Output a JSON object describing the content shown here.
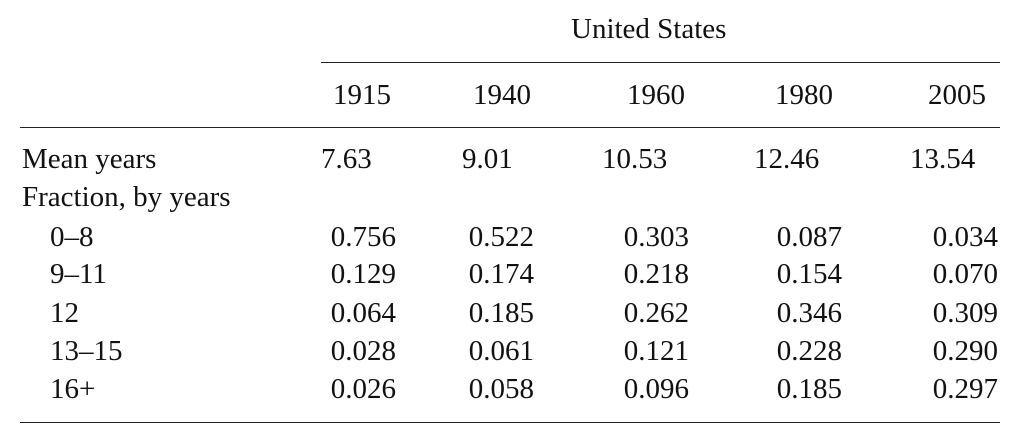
{
  "table": {
    "group_header": "United States",
    "years": [
      "1915",
      "1940",
      "1960",
      "1980",
      "2005"
    ],
    "mean_years": {
      "label": "Mean years",
      "values": [
        "7.63",
        "9.01",
        "10.53",
        "12.46",
        "13.54"
      ]
    },
    "fraction_heading": "Fraction, by years",
    "fraction_rows": [
      {
        "label": "0–8",
        "values": [
          "0.756",
          "0.522",
          "0.303",
          "0.087",
          "0.034"
        ]
      },
      {
        "label": "9–11",
        "values": [
          "0.129",
          "0.174",
          "0.218",
          "0.154",
          "0.070"
        ]
      },
      {
        "label": "12",
        "values": [
          "0.064",
          "0.185",
          "0.262",
          "0.346",
          "0.309"
        ]
      },
      {
        "label": "13–15",
        "values": [
          "0.028",
          "0.061",
          "0.121",
          "0.228",
          "0.290"
        ]
      },
      {
        "label": "16+",
        "values": [
          "0.026",
          "0.058",
          "0.096",
          "0.185",
          "0.297"
        ]
      }
    ]
  }
}
